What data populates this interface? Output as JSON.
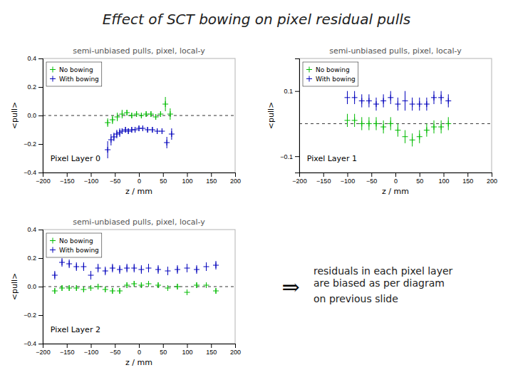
{
  "title": "Effect of SCT bowing on pixel residual pulls",
  "annotations": [
    "⇒",
    "residuals in each pixel layer\nare biased as per diagram\non previous slide"
  ],
  "chart_data": [
    {
      "type": "scatter",
      "title": "semi-unbiased pulls, pixel, local-y",
      "x_label": "z / mm",
      "y_label": "<pull>",
      "xlim": [
        -200,
        200
      ],
      "xticks": [
        -200,
        -150,
        -100,
        -50,
        0,
        50,
        100,
        150,
        200
      ],
      "ylim": [
        -0.4,
        0.4
      ],
      "yticks": [
        -0.4,
        -0.2,
        {
          "value": 0,
          "label": "0.0"
        },
        0.2,
        0.4
      ],
      "hline": 0,
      "legend": "upper left",
      "annotations": [
        "Pixel Layer 0"
      ],
      "series": [
        {
          "name": "No bowing",
          "color": "#00bb00",
          "marker": "plus",
          "x": [
            -65,
            -55,
            -45,
            -35,
            -25,
            -15,
            -5,
            5,
            15,
            25,
            35,
            45,
            55,
            65
          ],
          "values": [
            -0.05,
            -0.03,
            -0.01,
            0.01,
            0.02,
            0.0,
            0.01,
            0.0,
            0.01,
            0.01,
            -0.01,
            0.01,
            0.08,
            0.01
          ],
          "errors": [
            0.03,
            0.03,
            0.03,
            0.03,
            0.02,
            0.02,
            0.02,
            0.02,
            0.02,
            0.02,
            0.02,
            0.02,
            0.05,
            0.04
          ]
        },
        {
          "name": "With bowing",
          "color": "#0000bb",
          "marker": "plus",
          "x": [
            -65,
            -58,
            -52,
            -46,
            -40,
            -35,
            -28,
            -22,
            -15,
            -8,
            0,
            8,
            18,
            28,
            38,
            48,
            58,
            68
          ],
          "values": [
            -0.24,
            -0.17,
            -0.15,
            -0.13,
            -0.12,
            -0.11,
            -0.1,
            -0.11,
            -0.1,
            -0.1,
            -0.09,
            -0.09,
            -0.1,
            -0.1,
            -0.11,
            -0.11,
            -0.19,
            -0.13
          ],
          "errors": [
            0.06,
            0.04,
            0.03,
            0.03,
            0.03,
            0.02,
            0.02,
            0.02,
            0.02,
            0.02,
            0.02,
            0.02,
            0.02,
            0.02,
            0.02,
            0.02,
            0.04,
            0.04
          ]
        }
      ]
    },
    {
      "type": "scatter",
      "title": "semi-unbiased pulls, pixel, local-y",
      "x_label": "z / mm",
      "y_label": "<pull>",
      "xlim": [
        -200,
        200
      ],
      "xticks": [
        -200,
        -150,
        -100,
        -50,
        0,
        50,
        100,
        150,
        200
      ],
      "ylim": [
        -0.15,
        0.2
      ],
      "yticks": [
        -0.1,
        0.1
      ],
      "hline": 0,
      "legend": "upper left",
      "annotations": [
        "Pixel Layer 1"
      ],
      "series": [
        {
          "name": "No bowing",
          "color": "#00bb00",
          "marker": "plus",
          "x": [
            -100,
            -85,
            -70,
            -55,
            -40,
            -25,
            -10,
            5,
            20,
            35,
            50,
            65,
            80,
            95,
            110
          ],
          "values": [
            0.01,
            0.01,
            0.0,
            0.0,
            0.0,
            -0.01,
            0.0,
            -0.02,
            -0.04,
            -0.05,
            -0.04,
            -0.02,
            -0.01,
            -0.01,
            0.0
          ],
          "errors": [
            0.02,
            0.02,
            0.02,
            0.02,
            0.02,
            0.02,
            0.02,
            0.02,
            0.02,
            0.02,
            0.02,
            0.02,
            0.02,
            0.02,
            0.02
          ]
        },
        {
          "name": "With bowing",
          "color": "#0000bb",
          "marker": "plus",
          "x": [
            -100,
            -85,
            -70,
            -55,
            -40,
            -25,
            -10,
            5,
            20,
            35,
            50,
            65,
            80,
            95,
            110
          ],
          "values": [
            0.08,
            0.08,
            0.07,
            0.07,
            0.06,
            0.07,
            0.08,
            0.06,
            0.07,
            0.06,
            0.06,
            0.06,
            0.08,
            0.08,
            0.07
          ],
          "errors": [
            0.02,
            0.02,
            0.02,
            0.02,
            0.02,
            0.02,
            0.02,
            0.02,
            0.03,
            0.02,
            0.02,
            0.02,
            0.02,
            0.02,
            0.02
          ]
        }
      ]
    },
    {
      "type": "scatter",
      "title": "semi-unbiased pulls, pixel, local-y",
      "x_label": "z / mm",
      "y_label": "<pull>",
      "xlim": [
        -200,
        200
      ],
      "xticks": [
        -200,
        -150,
        -100,
        -50,
        0,
        50,
        100,
        150,
        200
      ],
      "ylim": [
        -0.4,
        0.4
      ],
      "yticks": [
        -0.4,
        -0.2,
        {
          "value": 0,
          "label": "0.0"
        },
        0.2,
        0.4
      ],
      "hline": 0,
      "legend": "upper left",
      "annotations": [
        "Pixel Layer 2"
      ],
      "series": [
        {
          "name": "No bowing",
          "color": "#00bb00",
          "marker": "plus",
          "x": [
            -175,
            -160,
            -145,
            -130,
            -115,
            -100,
            -85,
            -70,
            -55,
            -40,
            -25,
            -10,
            5,
            20,
            40,
            60,
            80,
            100,
            120,
            140,
            160
          ],
          "values": [
            -0.03,
            -0.01,
            -0.01,
            -0.01,
            -0.02,
            -0.01,
            0.0,
            -0.02,
            -0.03,
            -0.03,
            0.01,
            0.02,
            0.01,
            0.02,
            0.01,
            -0.01,
            0.0,
            -0.04,
            0.01,
            0.01,
            -0.03
          ],
          "errors": [
            0.02,
            0.02,
            0.02,
            0.02,
            0.02,
            0.02,
            0.02,
            0.02,
            0.02,
            0.02,
            0.02,
            0.02,
            0.02,
            0.02,
            0.02,
            0.02,
            0.02,
            0.02,
            0.02,
            0.02,
            0.02
          ]
        },
        {
          "name": "With bowing",
          "color": "#0000bb",
          "marker": "plus",
          "x": [
            -175,
            -160,
            -145,
            -130,
            -115,
            -100,
            -85,
            -70,
            -55,
            -40,
            -25,
            -10,
            5,
            20,
            40,
            60,
            80,
            100,
            120,
            140,
            160
          ],
          "values": [
            0.08,
            0.17,
            0.16,
            0.14,
            0.14,
            0.08,
            0.13,
            0.11,
            0.13,
            0.12,
            0.13,
            0.13,
            0.12,
            0.13,
            0.12,
            0.11,
            0.12,
            0.13,
            0.12,
            0.14,
            0.15
          ],
          "errors": [
            0.03,
            0.03,
            0.03,
            0.03,
            0.03,
            0.03,
            0.03,
            0.03,
            0.03,
            0.03,
            0.03,
            0.03,
            0.03,
            0.03,
            0.03,
            0.03,
            0.03,
            0.03,
            0.03,
            0.03,
            0.03
          ]
        }
      ]
    }
  ]
}
